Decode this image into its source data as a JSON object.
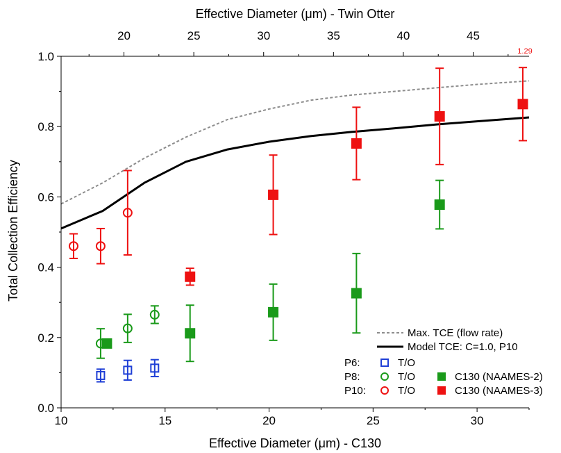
{
  "chart_data": {
    "type": "scatter",
    "xlabel": "Effective Diameter (μm) - C130",
    "x2label": "Effective Diameter (μm) - Twin Otter",
    "ylabel": "Total Collection Efficiency",
    "xlim": [
      10,
      32.5
    ],
    "x2lim": [
      15.5,
      49
    ],
    "ylim": [
      0,
      1.0
    ],
    "xticks": [
      10,
      15,
      20,
      25,
      30
    ],
    "x2ticks": [
      20,
      25,
      30,
      35,
      40,
      45
    ],
    "yticks": [
      0.0,
      0.2,
      0.4,
      0.6,
      0.8,
      1.0
    ],
    "ytick_labels": [
      "0.0",
      "0.2",
      "0.4",
      "0.6",
      "0.8",
      "1.0"
    ],
    "colors": {
      "blue": "#1f3fd6",
      "green": "#1a9a1a",
      "red": "#ee1111",
      "gray": "#8c8c8c",
      "black": "#000000"
    },
    "annotation": {
      "text": "1.29",
      "x": 32.3,
      "y": 1.0
    },
    "lines": [
      {
        "name": "Max. TCE (flow rate)",
        "style": "dashed",
        "color": "#8c8c8c",
        "x": [
          10,
          12,
          14,
          16,
          18,
          20,
          22,
          24,
          26,
          28,
          30,
          32.5
        ],
        "y": [
          0.58,
          0.64,
          0.71,
          0.77,
          0.82,
          0.85,
          0.875,
          0.89,
          0.9,
          0.91,
          0.92,
          0.93
        ]
      },
      {
        "name": "Model TCE: C=1.0, P10",
        "style": "solid",
        "color": "#000000",
        "x": [
          10,
          12,
          14,
          16,
          18,
          20,
          22,
          24,
          26,
          28,
          30,
          32.5
        ],
        "y": [
          0.51,
          0.56,
          0.64,
          0.7,
          0.735,
          0.757,
          0.773,
          0.785,
          0.795,
          0.806,
          0.815,
          0.826
        ]
      }
    ],
    "series": [
      {
        "name": "P6 T/O",
        "marker": "square-open",
        "color": "#1f3fd6",
        "x": [
          11.9,
          13.2,
          14.5
        ],
        "y": [
          0.092,
          0.107,
          0.113
        ],
        "err": [
          0.018,
          0.028,
          0.024
        ]
      },
      {
        "name": "P8 T/O",
        "marker": "circle-open",
        "color": "#1a9a1a",
        "x": [
          11.9,
          13.2,
          14.5
        ],
        "y": [
          0.183,
          0.226,
          0.265
        ],
        "err": [
          0.042,
          0.04,
          0.025
        ]
      },
      {
        "name": "P8 C130 (NAAMES-2)",
        "marker": "square-filled",
        "color": "#1a9a1a",
        "x": [
          12.2,
          16.2,
          20.2,
          24.2,
          28.2
        ],
        "y": [
          0.183,
          0.212,
          0.272,
          0.326,
          0.578
        ],
        "err": [
          0,
          0.08,
          0.08,
          0.113,
          0.069
        ]
      },
      {
        "name": "P10 T/O",
        "marker": "circle-open",
        "color": "#ee1111",
        "x": [
          10.6,
          11.9,
          13.2
        ],
        "y": [
          0.46,
          0.46,
          0.555
        ],
        "err": [
          0.035,
          0.05,
          0.12
        ]
      },
      {
        "name": "P10 C130 (NAAMES-3)",
        "marker": "square-filled",
        "color": "#ee1111",
        "x": [
          16.2,
          20.2,
          24.2,
          28.2,
          32.2
        ],
        "y": [
          0.373,
          0.606,
          0.752,
          0.829,
          0.864
        ],
        "err": [
          0.024,
          0.113,
          0.103,
          0.137,
          0.104
        ]
      }
    ],
    "legend": {
      "position": "bottom-right",
      "line_entries": [
        {
          "label": "Max. TCE (flow rate)",
          "style": "dashed",
          "color": "#8c8c8c"
        },
        {
          "label": "Model TCE: C=1.0, P10",
          "style": "solid",
          "color": "#000000"
        }
      ],
      "rows": [
        {
          "prefix": "P6:",
          "items": [
            {
              "marker": "square-open",
              "color": "#1f3fd6",
              "label": "T/O"
            }
          ]
        },
        {
          "prefix": "P8:",
          "items": [
            {
              "marker": "circle-open",
              "color": "#1a9a1a",
              "label": "T/O"
            },
            {
              "marker": "square-filled",
              "color": "#1a9a1a",
              "label": "C130 (NAAMES-2)"
            }
          ]
        },
        {
          "prefix": "P10:",
          "items": [
            {
              "marker": "circle-open",
              "color": "#ee1111",
              "label": "T/O"
            },
            {
              "marker": "square-filled",
              "color": "#ee1111",
              "label": "C130 (NAAMES-3)"
            }
          ]
        }
      ]
    }
  }
}
